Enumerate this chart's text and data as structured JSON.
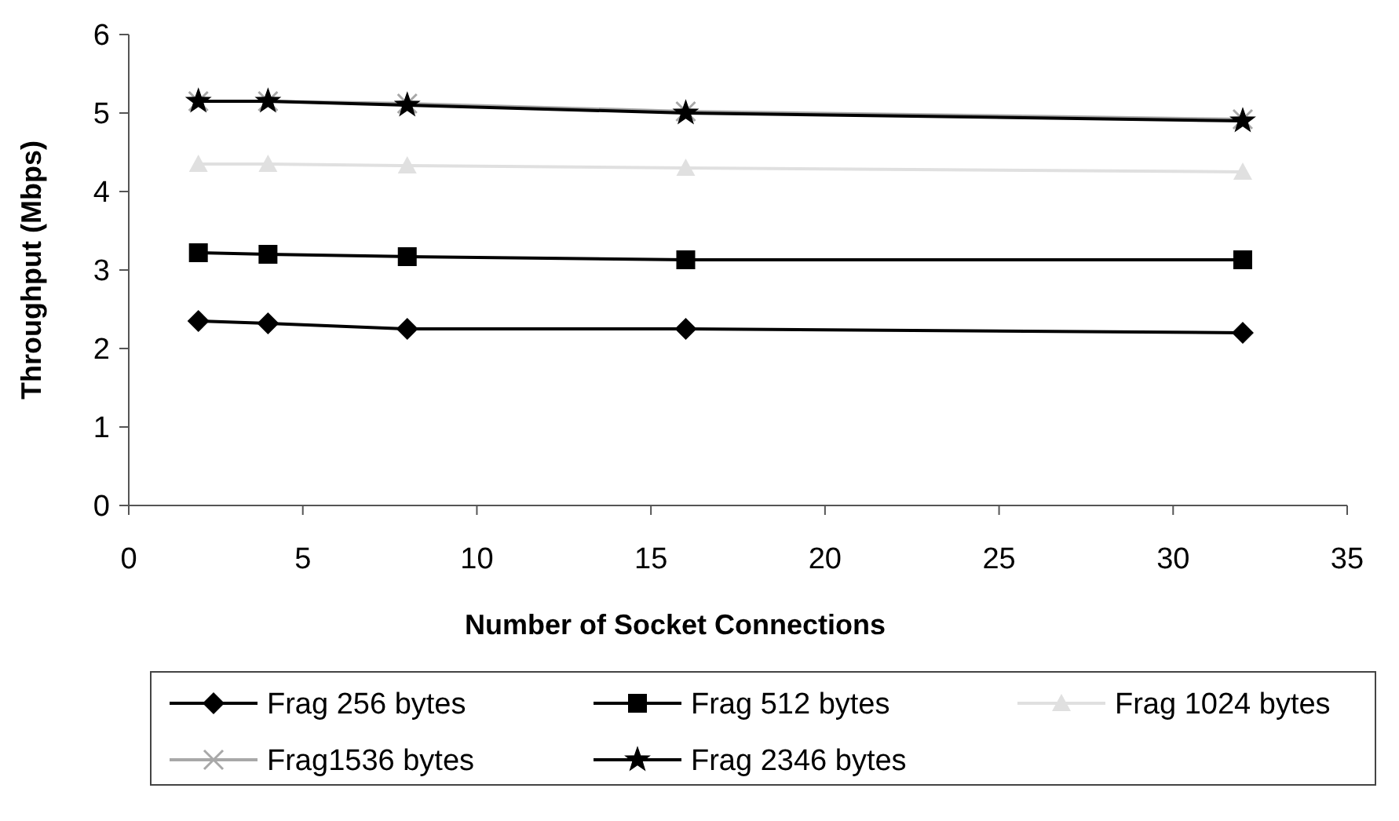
{
  "chart_data": {
    "type": "line",
    "xlabel": "Number of Socket Connections",
    "ylabel": "Throughput (Mbps)",
    "xlim": [
      0,
      35
    ],
    "xticks": [
      0,
      5,
      10,
      15,
      20,
      25,
      30,
      35
    ],
    "ylim": [
      0,
      6
    ],
    "yticks": [
      0,
      1,
      2,
      3,
      4,
      5,
      6
    ],
    "grid": false,
    "legend": "bottom",
    "x": [
      2,
      4,
      8,
      16,
      32
    ],
    "series": [
      {
        "name": "Frag 256 bytes",
        "color": "#000000",
        "marker": "diamond",
        "values": [
          2.35,
          2.32,
          2.25,
          2.25,
          2.2
        ]
      },
      {
        "name": "Frag 512 bytes",
        "color": "#000000",
        "marker": "square",
        "values": [
          3.22,
          3.2,
          3.17,
          3.13,
          3.13
        ]
      },
      {
        "name": "Frag 1024 bytes",
        "color": "#e0e0e0",
        "marker": "triangle",
        "values": [
          4.35,
          4.35,
          4.33,
          4.3,
          4.25
        ]
      },
      {
        "name": "Frag1536 bytes",
        "color": "#a8a8a8",
        "marker": "cross",
        "values": [
          5.15,
          5.15,
          5.12,
          5.02,
          4.92
        ]
      },
      {
        "name": "Frag 2346 bytes",
        "color": "#000000",
        "marker": "star",
        "values": [
          5.15,
          5.15,
          5.1,
          5.0,
          4.9
        ]
      }
    ]
  }
}
